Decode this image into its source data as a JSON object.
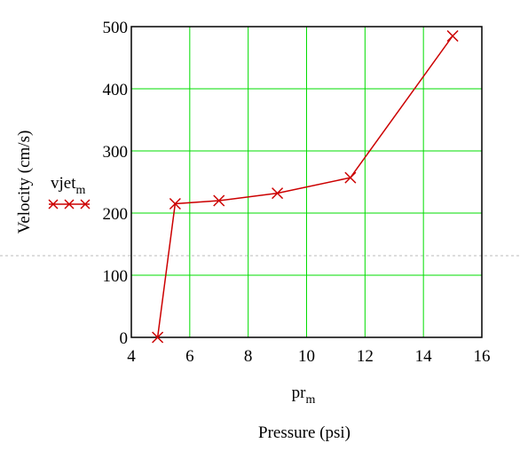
{
  "chart_data": {
    "type": "line",
    "x": [
      4.9,
      5.5,
      7.0,
      9.0,
      11.5,
      15.0
    ],
    "series": [
      {
        "name": "vjet",
        "values": [
          0,
          215,
          220,
          232,
          257,
          485
        ],
        "color": "#cc0000",
        "marker": "x"
      }
    ],
    "legend": {
      "base": "vjet",
      "subscript": "m",
      "position": "left"
    },
    "xlabel": {
      "base": "pr",
      "subscript": "m"
    },
    "xtitle": "Pressure (psi)",
    "ylabel": "Velocity (cm/s)",
    "xlim": [
      4,
      16
    ],
    "ylim": [
      0,
      500
    ],
    "xticks": [
      "4",
      "6",
      "8",
      "10",
      "12",
      "14",
      "16"
    ],
    "yticks": [
      "0",
      "100",
      "200",
      "300",
      "400",
      "500"
    ],
    "grid": true,
    "grid_color": "#00dd00",
    "axis_color": "#000000",
    "dashed_rule_color": "#bbbbbb"
  }
}
